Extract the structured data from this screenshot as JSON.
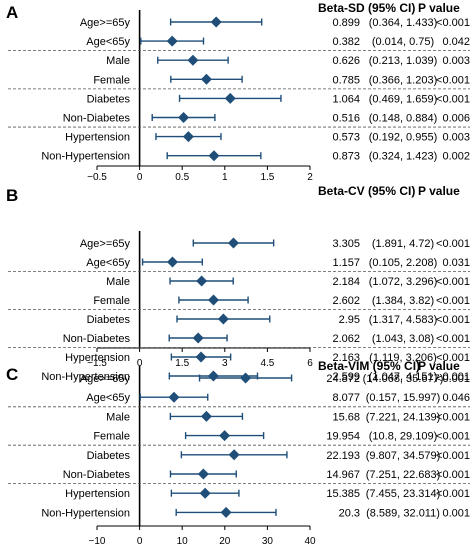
{
  "chart_data": [
    {
      "type": "forest",
      "panel": "A",
      "estimate_header": "Beta-SD (95% CI)",
      "p_header": "P value",
      "xlim": [
        -0.5,
        2
      ],
      "xticks": [
        "−0.5",
        "0",
        "0.5",
        "1",
        "1.5",
        "2"
      ],
      "rows": [
        {
          "label": "Age>=65y",
          "beta": 0.899,
          "lo": 0.364,
          "hi": 1.433,
          "text": "0.899",
          "ci_text": "(0.364, 1.433)",
          "p": "<0.001"
        },
        {
          "label": "Age<65y",
          "beta": 0.382,
          "lo": 0.014,
          "hi": 0.75,
          "text": "0.382",
          "ci_text": "(0.014, 0.75)",
          "p": "0.042"
        },
        {
          "label": "Male",
          "beta": 0.626,
          "lo": 0.213,
          "hi": 1.039,
          "text": "0.626",
          "ci_text": "(0.213, 1.039)",
          "p": "0.003"
        },
        {
          "label": "Female",
          "beta": 0.785,
          "lo": 0.366,
          "hi": 1.203,
          "text": "0.785",
          "ci_text": "(0.366, 1.203)",
          "p": "<0.001"
        },
        {
          "label": "Diabetes",
          "beta": 1.064,
          "lo": 0.469,
          "hi": 1.659,
          "text": "1.064",
          "ci_text": "(0.469, 1.659)",
          "p": "<0.001"
        },
        {
          "label": "Non-Diabetes",
          "beta": 0.516,
          "lo": 0.148,
          "hi": 0.884,
          "text": "0.516",
          "ci_text": "(0.148, 0.884)",
          "p": "0.006"
        },
        {
          "label": "Hypertension",
          "beta": 0.573,
          "lo": 0.192,
          "hi": 0.955,
          "text": "0.573",
          "ci_text": "(0.192, 0.955)",
          "p": "0.003"
        },
        {
          "label": "Non-Hypertension",
          "beta": 0.873,
          "lo": 0.324,
          "hi": 1.423,
          "text": "0.873",
          "ci_text": "(0.324, 1.423)",
          "p": "0.002"
        }
      ]
    },
    {
      "type": "forest",
      "panel": "B",
      "estimate_header": "Beta-CV (95% CI)",
      "p_header": "P value",
      "xlim": [
        -1.5,
        6
      ],
      "xticks": [
        "−1.5",
        "0",
        "1.5",
        "3",
        "4.5",
        "6"
      ],
      "rows": [
        {
          "label": "Age>=65y",
          "beta": 3.305,
          "lo": 1.891,
          "hi": 4.72,
          "text": "3.305",
          "ci_text": "(1.891, 4.72)",
          "p": "<0.001"
        },
        {
          "label": "Age<65y",
          "beta": 1.157,
          "lo": 0.105,
          "hi": 2.208,
          "text": "1.157",
          "ci_text": "(0.105, 2.208)",
          "p": "0.031"
        },
        {
          "label": "Male",
          "beta": 2.184,
          "lo": 1.072,
          "hi": 3.296,
          "text": "2.184",
          "ci_text": "(1.072, 3.296)",
          "p": "<0.001"
        },
        {
          "label": "Female",
          "beta": 2.602,
          "lo": 1.384,
          "hi": 3.82,
          "text": "2.602",
          "ci_text": "(1.384, 3.82)",
          "p": "<0.001"
        },
        {
          "label": "Diabetes",
          "beta": 2.95,
          "lo": 1.317,
          "hi": 4.583,
          "text": "2.95",
          "ci_text": "(1.317, 4.583)",
          "p": "<0.001"
        },
        {
          "label": "Non-Diabetes",
          "beta": 2.062,
          "lo": 1.043,
          "hi": 3.08,
          "text": "2.062",
          "ci_text": "(1.043, 3.08)",
          "p": "<0.001"
        },
        {
          "label": "Hypertension",
          "beta": 2.163,
          "lo": 1.119,
          "hi": 3.206,
          "text": "2.163",
          "ci_text": "(1.119, 3.206)",
          "p": "<0.001"
        },
        {
          "label": "Non-Hypertension",
          "beta": 2.599,
          "lo": 1.047,
          "hi": 4.151,
          "text": "2.599",
          "ci_text": "(1.047, 4.151)",
          "p": "0.001"
        }
      ]
    },
    {
      "type": "forest",
      "panel": "C",
      "estimate_header": "Beta-VIM (95% CI)",
      "p_header": "P value",
      "xlim": [
        -10,
        40
      ],
      "xticks": [
        "−10",
        "0",
        "10",
        "20",
        "30",
        "40"
      ],
      "rows": [
        {
          "label": "Age>=65y",
          "beta": 24.872,
          "lo": 14.068,
          "hi": 35.677,
          "text": "24.872",
          "ci_text": "(14.068, 35.677)",
          "p": "<0.001"
        },
        {
          "label": "Age<65y",
          "beta": 8.077,
          "lo": 0.157,
          "hi": 15.997,
          "text": "8.077",
          "ci_text": "(0.157, 15.997)",
          "p": "0.046"
        },
        {
          "label": "Male",
          "beta": 15.68,
          "lo": 7.221,
          "hi": 24.139,
          "text": "15.68",
          "ci_text": "(7.221, 24.139)",
          "p": "<0.001"
        },
        {
          "label": "Female",
          "beta": 19.954,
          "lo": 10.8,
          "hi": 29.109,
          "text": "19.954",
          "ci_text": "(10.8, 29.109)",
          "p": "<0.001"
        },
        {
          "label": "Diabetes",
          "beta": 22.193,
          "lo": 9.807,
          "hi": 34.579,
          "text": "22.193",
          "ci_text": "(9.807, 34.579)",
          "p": "<0.001"
        },
        {
          "label": "Non-Diabetes",
          "beta": 14.967,
          "lo": 7.251,
          "hi": 22.683,
          "text": "14.967",
          "ci_text": "(7.251, 22.683)",
          "p": "<0.001"
        },
        {
          "label": "Hypertension",
          "beta": 15.385,
          "lo": 7.455,
          "hi": 23.314,
          "text": "15.385",
          "ci_text": "(7.455, 23.314)",
          "p": "<0.001"
        },
        {
          "label": "Non-Hypertension",
          "beta": 20.3,
          "lo": 8.589,
          "hi": 32.011,
          "text": "20.3",
          "ci_text": "(8.589, 32.011)",
          "p": "0.001"
        }
      ]
    }
  ],
  "colors": {
    "marker": "#1f4e79",
    "ci_line": "#1f4e79",
    "zero_line": "#000000",
    "divider": "#555555",
    "axis": "#000000"
  }
}
